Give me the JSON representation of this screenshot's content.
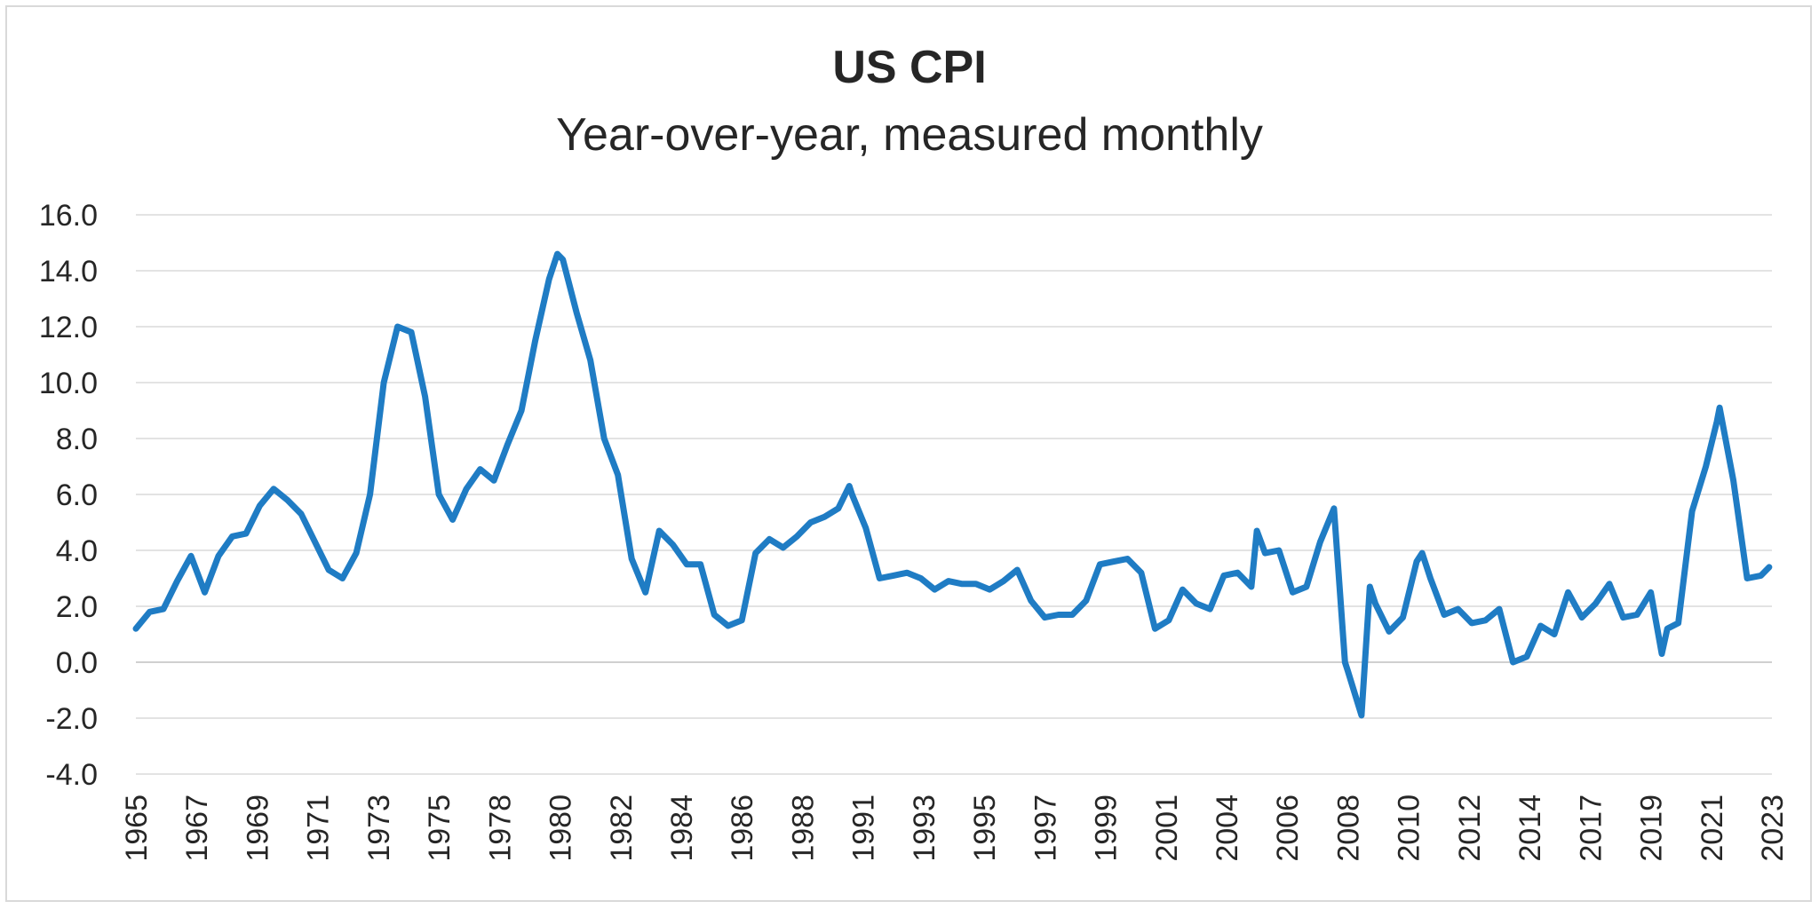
{
  "chart_data": {
    "type": "line",
    "title": "US CPI",
    "subtitle": "Year-over-year, measured monthly",
    "xlabel": "",
    "ylabel": "",
    "ylim": [
      -4,
      16
    ],
    "yticks": [
      "16.0",
      "14.0",
      "12.0",
      "10.0",
      "8.0",
      "6.0",
      "4.0",
      "2.0",
      "0.0",
      "-2.0",
      "-4.0"
    ],
    "xticks": [
      "1965",
      "1967",
      "1969",
      "1971",
      "1973",
      "1975",
      "1978",
      "1980",
      "1982",
      "1984",
      "1986",
      "1988",
      "1991",
      "1993",
      "1995",
      "1997",
      "1999",
      "2001",
      "2004",
      "2006",
      "2008",
      "2010",
      "2012",
      "2014",
      "2017",
      "2019",
      "2021",
      "2023"
    ],
    "grid": true,
    "legend": "none",
    "line_color": "#1f7cc4",
    "series": [
      {
        "x": [
          1965.0,
          1965.5,
          1966.0,
          1966.5,
          1967.0,
          1967.5,
          1968.0,
          1968.5,
          1969.0,
          1969.5,
          1970.0,
          1970.5,
          1971.0,
          1971.5,
          1972.0,
          1972.5,
          1973.0,
          1973.5,
          1974.0,
          1974.5,
          1975.0,
          1975.5,
          1976.0,
          1976.5,
          1977.0,
          1977.5,
          1978.0,
          1978.5,
          1979.0,
          1979.5,
          1980.0,
          1980.3,
          1980.5,
          1981.0,
          1981.5,
          1982.0,
          1982.5,
          1983.0,
          1983.5,
          1984.0,
          1984.5,
          1985.0,
          1985.5,
          1986.0,
          1986.5,
          1987.0,
          1987.5,
          1988.0,
          1988.5,
          1989.0,
          1989.5,
          1990.0,
          1990.5,
          1990.9,
          1991.0,
          1991.5,
          1992.0,
          1992.5,
          1993.0,
          1993.5,
          1994.0,
          1994.5,
          1995.0,
          1995.5,
          1996.0,
          1996.5,
          1997.0,
          1997.5,
          1998.0,
          1998.5,
          1999.0,
          1999.5,
          2000.0,
          2000.5,
          2001.0,
          2001.5,
          2002.0,
          2002.5,
          2003.0,
          2003.5,
          2004.0,
          2004.5,
          2005.0,
          2005.5,
          2005.7,
          2006.0,
          2006.5,
          2007.0,
          2007.5,
          2008.0,
          2008.5,
          2008.9,
          2009.0,
          2009.5,
          2009.8,
          2010.0,
          2010.5,
          2011.0,
          2011.5,
          2011.7,
          2012.0,
          2012.5,
          2013.0,
          2013.5,
          2014.0,
          2014.5,
          2015.0,
          2015.5,
          2016.0,
          2016.5,
          2017.0,
          2017.5,
          2018.0,
          2018.5,
          2019.0,
          2019.5,
          2020.0,
          2020.4,
          2020.6,
          2021.0,
          2021.5,
          2022.0,
          2022.4,
          2022.5,
          2023.0,
          2023.5,
          2024.0,
          2024.3
        ],
        "y": [
          1.2,
          1.8,
          1.9,
          2.9,
          3.8,
          2.5,
          3.8,
          4.5,
          4.6,
          5.6,
          6.2,
          5.8,
          5.3,
          4.3,
          3.3,
          3.0,
          3.9,
          6.0,
          10.0,
          12.0,
          11.8,
          9.5,
          6.0,
          5.1,
          6.2,
          6.9,
          6.5,
          7.8,
          9.0,
          11.5,
          13.7,
          14.6,
          14.4,
          12.5,
          10.8,
          8.0,
          6.7,
          3.7,
          2.5,
          4.7,
          4.2,
          3.5,
          3.5,
          1.7,
          1.3,
          1.5,
          3.9,
          4.4,
          4.1,
          4.5,
          5.0,
          5.2,
          5.5,
          6.3,
          6.0,
          4.8,
          3.0,
          3.1,
          3.2,
          3.0,
          2.6,
          2.9,
          2.8,
          2.8,
          2.6,
          2.9,
          3.3,
          2.2,
          1.6,
          1.7,
          1.7,
          2.2,
          3.5,
          3.6,
          3.7,
          3.2,
          1.2,
          1.5,
          2.6,
          2.1,
          1.9,
          3.1,
          3.2,
          2.7,
          4.7,
          3.9,
          4.0,
          2.5,
          2.7,
          4.3,
          5.5,
          0.0,
          -0.3,
          -1.9,
          2.7,
          2.1,
          1.1,
          1.6,
          3.6,
          3.9,
          3.0,
          1.7,
          1.9,
          1.4,
          1.5,
          1.9,
          0.0,
          0.2,
          1.3,
          1.0,
          2.5,
          1.6,
          2.1,
          2.8,
          1.6,
          1.7,
          2.5,
          0.3,
          1.2,
          1.4,
          5.4,
          7.0,
          8.6,
          9.1,
          6.5,
          3.0,
          3.1,
          3.4
        ]
      }
    ]
  }
}
